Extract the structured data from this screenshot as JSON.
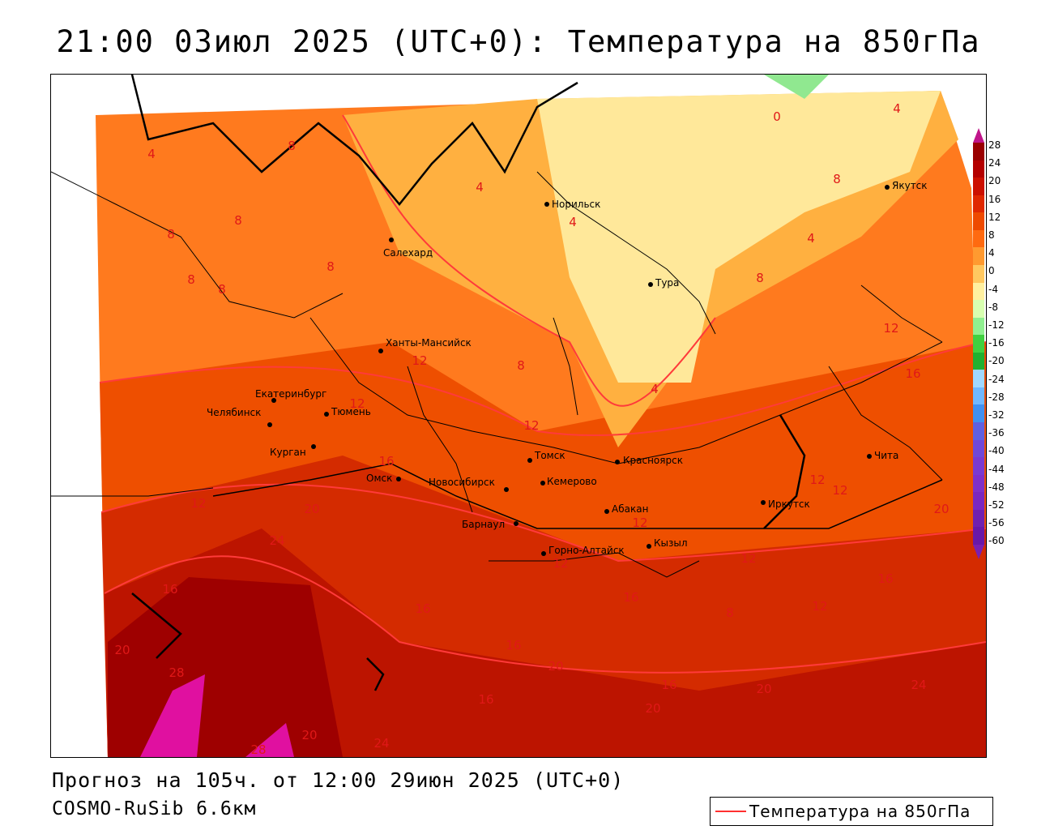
{
  "header": {
    "title": "21:00 03июл 2025 (UTC+0): Температура на 850гПа"
  },
  "footer": {
    "forecast": "Прогноз на 105ч. от 12:00 29июн 2025 (UTC+0)",
    "model": "COSMO-RuSib 6.6км"
  },
  "legend": {
    "label": "Температура на 850гПа",
    "line_color": "#ff3030"
  },
  "colorbar": {
    "ticks": [
      "28",
      "24",
      "20",
      "16",
      "12",
      "8",
      "4",
      "0",
      "-4",
      "-8",
      "-12",
      "-16",
      "-20",
      "-24",
      "-28",
      "-32",
      "-36",
      "-40",
      "-44",
      "-48",
      "-52",
      "-56",
      "-60"
    ],
    "colors": [
      "#9a0000",
      "#b40000",
      "#cc1000",
      "#e02800",
      "#ee4a00",
      "#ff6a10",
      "#ff9a30",
      "#ffc860",
      "#fff0a0",
      "#d8ffb0",
      "#90f090",
      "#40d040",
      "#20b030",
      "#a0d8ff",
      "#70b8ff",
      "#4090f0",
      "#6060e0",
      "#7048d8",
      "#7a3ad0",
      "#8030c8",
      "#7a28c0",
      "#7020b0",
      "#6818a8"
    ]
  },
  "cities": [
    {
      "name": "Салехард"
    },
    {
      "name": "Норильск"
    },
    {
      "name": "Тура"
    },
    {
      "name": "Якутск"
    },
    {
      "name": "Ханты-Мансийск"
    },
    {
      "name": "Екатеринбург"
    },
    {
      "name": "Тюмень"
    },
    {
      "name": "Челябинск"
    },
    {
      "name": "Курган"
    },
    {
      "name": "Омск"
    },
    {
      "name": "Томск"
    },
    {
      "name": "Новосибирск"
    },
    {
      "name": "Кемерово"
    },
    {
      "name": "Красноярск"
    },
    {
      "name": "Барнаул"
    },
    {
      "name": "Абакан"
    },
    {
      "name": "Иркутск"
    },
    {
      "name": "Чита"
    },
    {
      "name": "Горно-Алтайск"
    },
    {
      "name": "Кызыл"
    }
  ],
  "contour_labels": [
    "4",
    "8",
    "0",
    "4",
    "8",
    "8",
    "8",
    "8",
    "8",
    "8",
    "4",
    "4",
    "4",
    "8",
    "4",
    "8",
    "12",
    "12",
    "16",
    "12",
    "12",
    "16",
    "12",
    "20",
    "24",
    "16",
    "20",
    "16",
    "28",
    "28",
    "20",
    "16",
    "20",
    "24",
    "16",
    "20",
    "24",
    "12",
    "12",
    "12",
    "16",
    "12",
    "12",
    "16",
    "20",
    "16",
    "20",
    "8",
    "12"
  ]
}
